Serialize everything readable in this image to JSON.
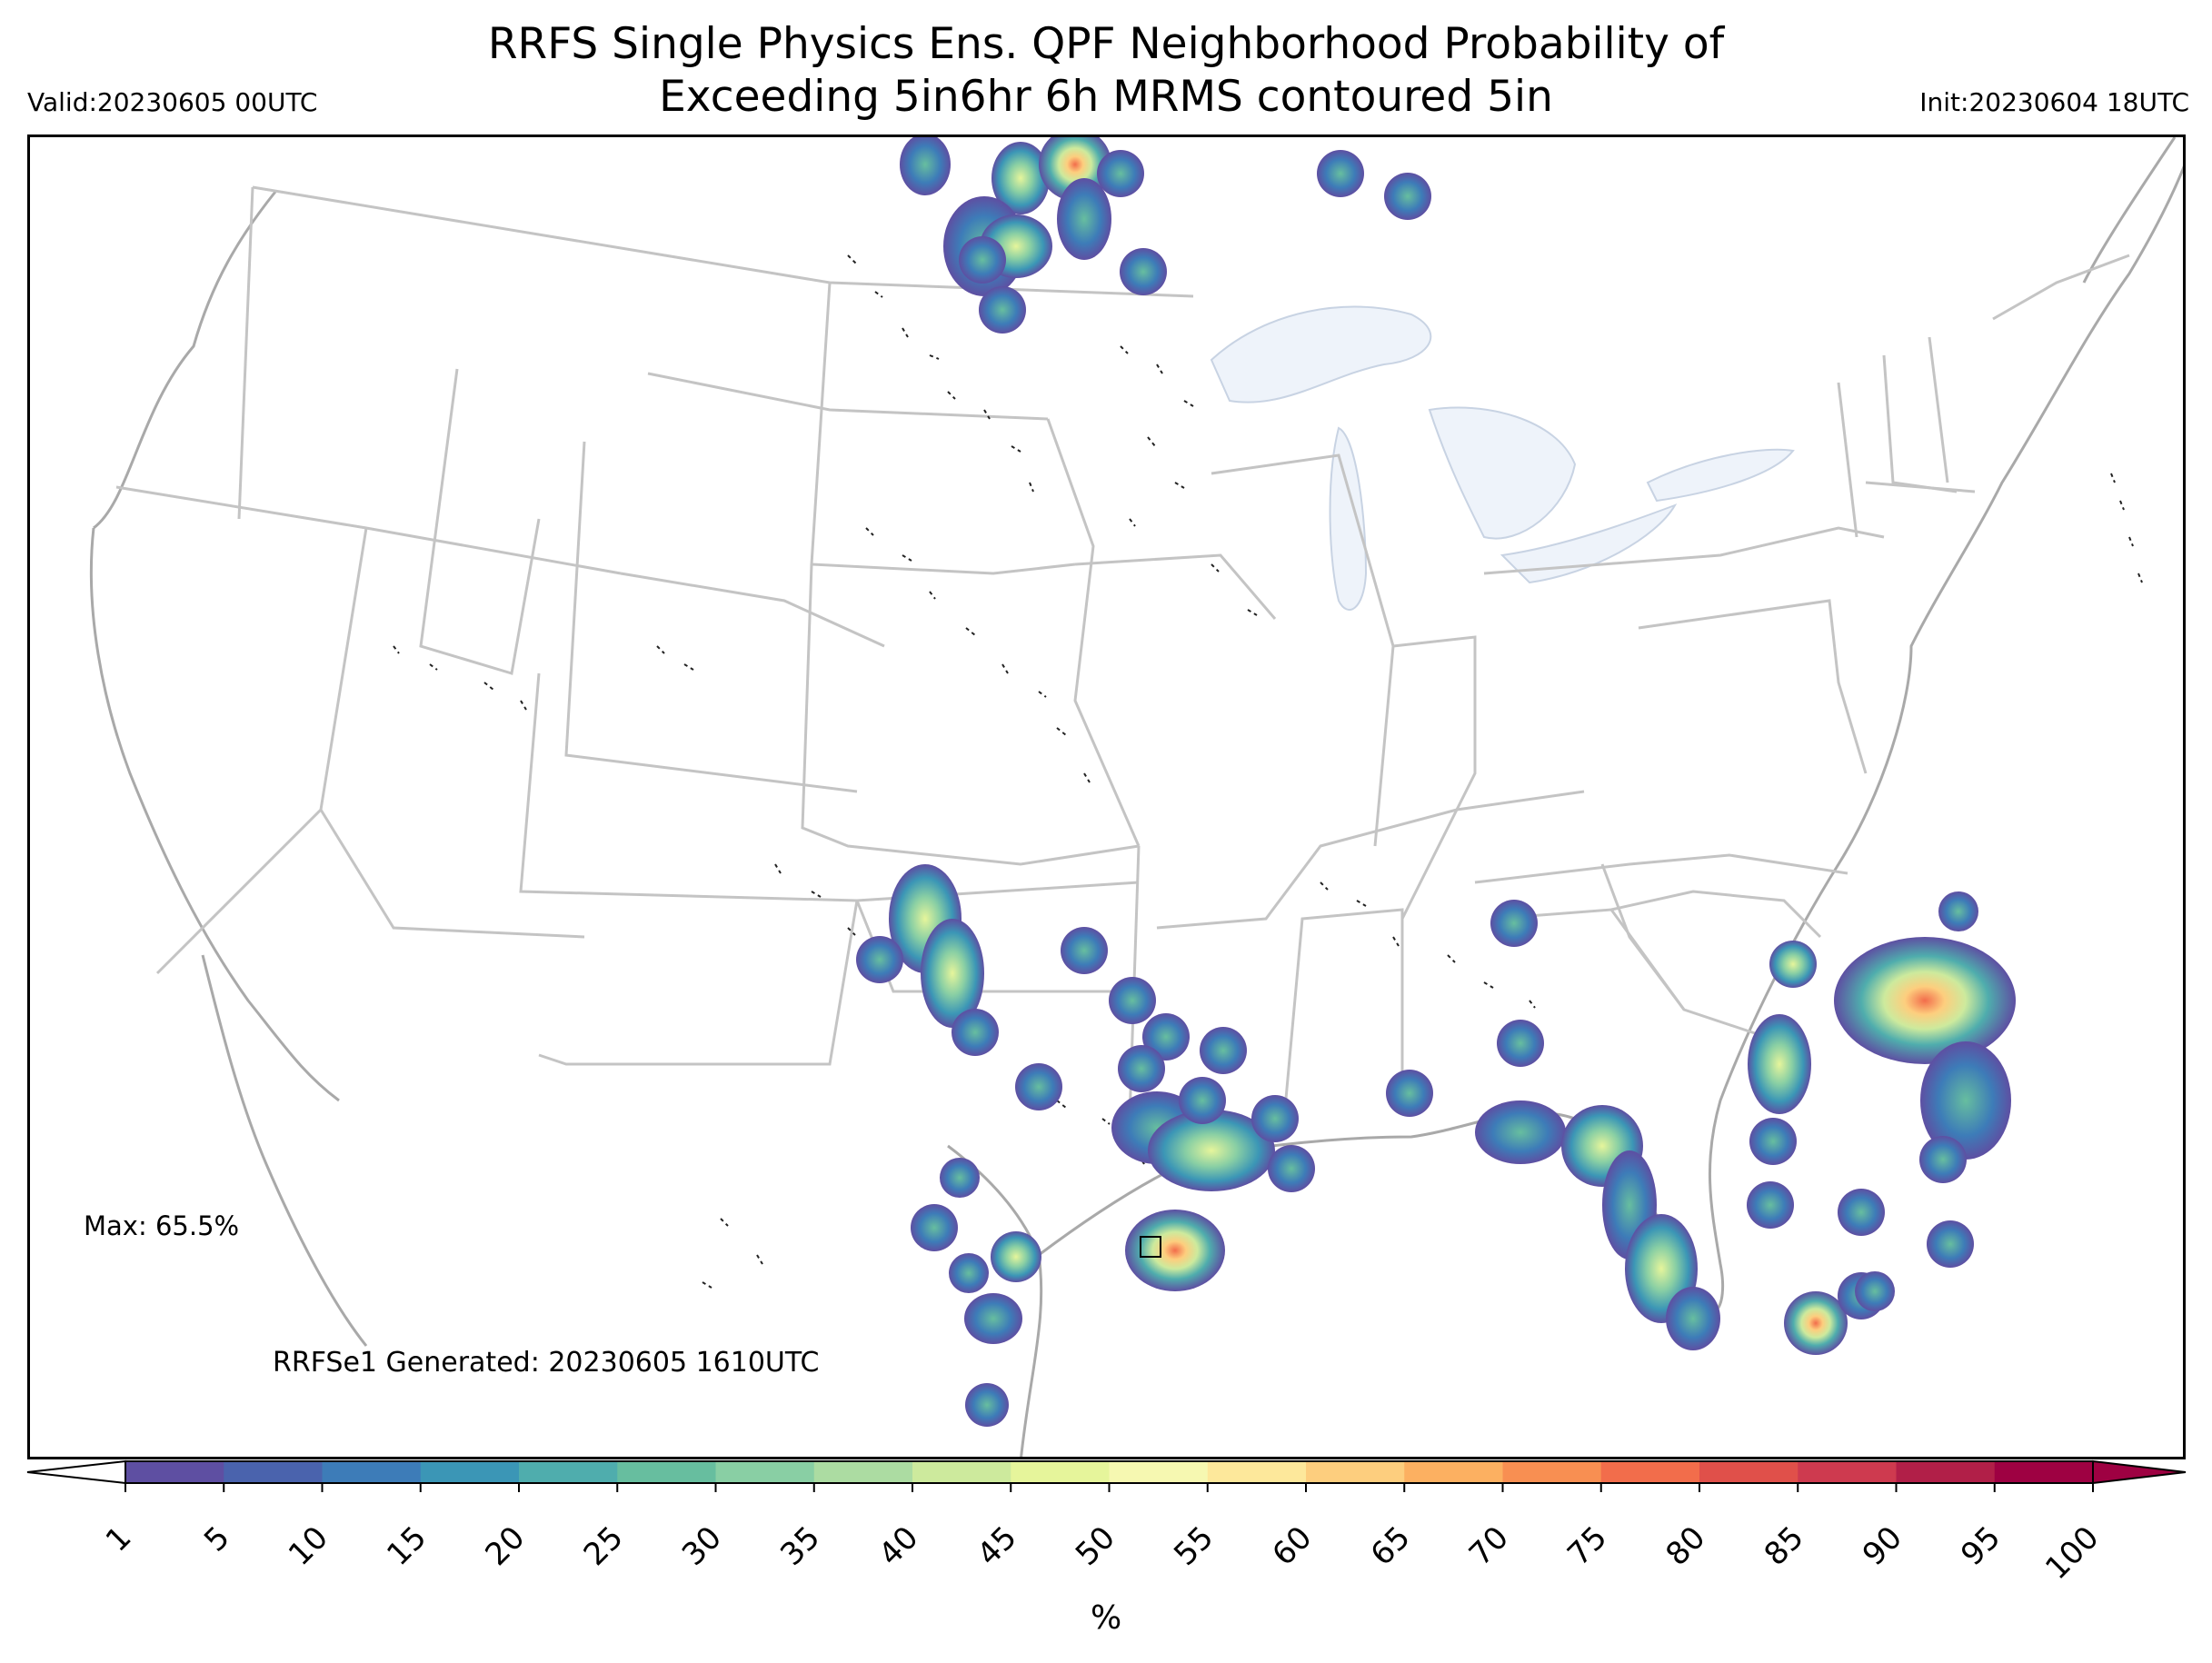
{
  "header": {
    "title_line1": "RRFS Single Physics Ens. QPF Neighborhood Probability of",
    "title_line2": "Exceeding 5in6hr 6h MRMS contoured 5in",
    "valid": "Valid:20230605 00UTC",
    "init": "Init:20230604 18UTC"
  },
  "annotations": {
    "max": "Max: 65.5%",
    "generated": "RRFSe1 Generated: 20230605 1610UTC"
  },
  "colorbar": {
    "ticks": [
      "1",
      "5",
      "10",
      "15",
      "20",
      "25",
      "30",
      "35",
      "40",
      "45",
      "50",
      "55",
      "60",
      "65",
      "70",
      "75",
      "80",
      "85",
      "90",
      "95",
      "100"
    ],
    "colors": [
      "#5e4fa2",
      "#4a63ad",
      "#3d7cb8",
      "#3b96b6",
      "#4fadad",
      "#67be9f",
      "#89cfa4",
      "#acdca2",
      "#cdea9d",
      "#e6f59b",
      "#f6f8b1",
      "#fde89b",
      "#fdce7e",
      "#fcb061",
      "#f88f52",
      "#f26d4b",
      "#e0504a",
      "#ce3a4f",
      "#b11f48",
      "#9e0142"
    ],
    "unit": "%"
  },
  "colors": {
    "state_lines": "#c0c0c0",
    "coast": "#a9a9a9",
    "lakes": "#eef3fa"
  }
}
